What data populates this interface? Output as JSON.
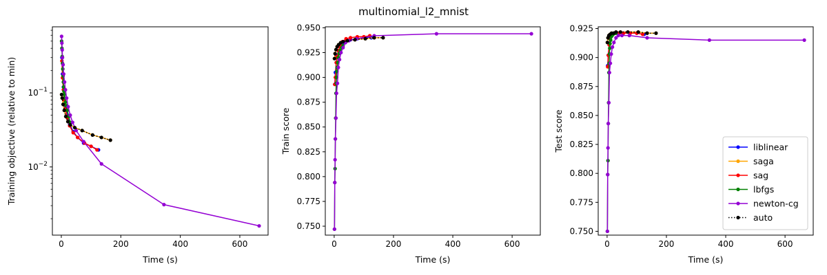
{
  "figure": {
    "title": "multinomial_l2_mnist"
  },
  "chart_data": [
    {
      "type": "line",
      "xlabel": "Time (s)",
      "ylabel": "Training objective (relative to min)",
      "xlim": [
        -30,
        695
      ],
      "ylim": [
        0.0012,
        0.78
      ],
      "yscale": "log",
      "xticks": [
        0,
        200,
        400,
        600
      ],
      "yticks": [
        {
          "value": 0.1,
          "base": "10",
          "exp": "−1"
        },
        {
          "value": 0.01,
          "base": "10",
          "exp": "−2"
        }
      ],
      "grid": false,
      "series": [
        {
          "name": "liblinear",
          "color": "#0000ff",
          "style": "solid",
          "x": [
            2,
            4,
            7,
            10,
            14,
            20,
            28,
            40,
            55,
            75,
            100,
            125
          ],
          "y": [
            0.3,
            0.18,
            0.12,
            0.085,
            0.065,
            0.05,
            0.038,
            0.03,
            0.025,
            0.021,
            0.019,
            0.017
          ]
        },
        {
          "name": "saga",
          "color": "#ffa500",
          "style": "solid",
          "x": [
            1,
            3,
            6,
            10,
            15,
            22,
            30,
            45,
            70,
            105,
            135,
            165
          ],
          "y": [
            0.095,
            0.085,
            0.07,
            0.058,
            0.048,
            0.041,
            0.037,
            0.034,
            0.031,
            0.027,
            0.025,
            0.023
          ]
        },
        {
          "name": "sag",
          "color": "#ff0000",
          "style": "solid",
          "x": [
            2,
            4,
            7,
            10,
            14,
            20,
            28,
            40,
            55,
            78,
            100,
            120
          ],
          "y": [
            0.27,
            0.16,
            0.11,
            0.08,
            0.06,
            0.046,
            0.036,
            0.029,
            0.025,
            0.021,
            0.019,
            0.017
          ]
        },
        {
          "name": "lbfgs",
          "color": "#008000",
          "style": "solid",
          "x": [
            1,
            2,
            3,
            4,
            5,
            6,
            7,
            8,
            9,
            10,
            12,
            14,
            17,
            20,
            25,
            30
          ],
          "y": [
            0.5,
            0.4,
            0.31,
            0.25,
            0.21,
            0.17,
            0.14,
            0.12,
            0.105,
            0.095,
            0.085,
            0.075,
            0.067,
            0.058,
            0.048,
            0.04
          ]
        },
        {
          "name": "newton-cg",
          "color": "#9400d3",
          "style": "solid",
          "x": [
            1,
            2,
            3,
            4,
            6,
            8,
            11,
            14,
            18,
            23,
            30,
            38,
            50,
            75,
            135,
            345,
            665
          ],
          "y": [
            0.58,
            0.47,
            0.38,
            0.3,
            0.24,
            0.18,
            0.14,
            0.11,
            0.085,
            0.065,
            0.05,
            0.04,
            0.031,
            0.022,
            0.011,
            0.0031,
            0.0016
          ]
        },
        {
          "name": "auto",
          "color": "#000000",
          "style": "dotted",
          "x": [
            1,
            3,
            6,
            10,
            15,
            22,
            30,
            45,
            70,
            105,
            135,
            165
          ],
          "y": [
            0.095,
            0.085,
            0.07,
            0.058,
            0.048,
            0.041,
            0.037,
            0.034,
            0.031,
            0.027,
            0.025,
            0.023
          ]
        }
      ]
    },
    {
      "type": "line",
      "xlabel": "Time (s)",
      "ylabel": "Train score",
      "xlim": [
        -30,
        695
      ],
      "ylim": [
        0.741,
        0.951
      ],
      "yscale": "linear",
      "xticks": [
        0,
        200,
        400,
        600
      ],
      "yticks": [
        0.75,
        0.775,
        0.8,
        0.825,
        0.85,
        0.875,
        0.9,
        0.925,
        0.95
      ],
      "grid": false,
      "series": [
        {
          "name": "liblinear",
          "color": "#0000ff",
          "style": "solid",
          "x": [
            2,
            4,
            7,
            10,
            14,
            20,
            28,
            40,
            55,
            78,
            100,
            125
          ],
          "y": [
            0.893,
            0.905,
            0.915,
            0.922,
            0.927,
            0.931,
            0.934,
            0.937,
            0.938,
            0.939,
            0.94,
            0.94
          ]
        },
        {
          "name": "saga",
          "color": "#ffa500",
          "style": "solid",
          "x": [
            1,
            3,
            6,
            10,
            15,
            22,
            30,
            45,
            70,
            105,
            135,
            165
          ],
          "y": [
            0.919,
            0.924,
            0.928,
            0.931,
            0.933,
            0.935,
            0.936,
            0.937,
            0.938,
            0.939,
            0.94,
            0.94
          ]
        },
        {
          "name": "sag",
          "color": "#ff0000",
          "style": "solid",
          "x": [
            2,
            4,
            7,
            10,
            14,
            20,
            28,
            40,
            55,
            78,
            100,
            120
          ],
          "y": [
            0.893,
            0.9,
            0.915,
            0.921,
            0.927,
            0.931,
            0.936,
            0.939,
            0.94,
            0.941,
            0.941,
            0.942
          ]
        },
        {
          "name": "lbfgs",
          "color": "#008000",
          "style": "solid",
          "x": [
            1,
            2,
            3,
            4,
            5,
            6,
            7,
            8,
            9,
            10,
            12,
            14,
            17,
            20,
            25,
            30
          ],
          "y": [
            0.747,
            0.794,
            0.808,
            0.838,
            0.859,
            0.884,
            0.894,
            0.9,
            0.906,
            0.91,
            0.915,
            0.92,
            0.924,
            0.927,
            0.93,
            0.932
          ]
        },
        {
          "name": "newton-cg",
          "color": "#9400d3",
          "style": "solid",
          "x": [
            1,
            2,
            3,
            4,
            6,
            8,
            11,
            14,
            18,
            23,
            30,
            38,
            50,
            75,
            135,
            345,
            665
          ],
          "y": [
            0.747,
            0.794,
            0.817,
            0.838,
            0.859,
            0.884,
            0.894,
            0.91,
            0.918,
            0.925,
            0.93,
            0.935,
            0.937,
            0.939,
            0.942,
            0.944,
            0.944
          ]
        },
        {
          "name": "auto",
          "color": "#000000",
          "style": "dotted",
          "x": [
            1,
            3,
            6,
            10,
            15,
            22,
            30,
            45,
            70,
            105,
            135,
            165
          ],
          "y": [
            0.919,
            0.924,
            0.928,
            0.931,
            0.933,
            0.935,
            0.936,
            0.937,
            0.938,
            0.939,
            0.94,
            0.94
          ]
        }
      ]
    },
    {
      "type": "line",
      "xlabel": "Time (s)",
      "ylabel": "Test score",
      "xlim": [
        -30,
        695
      ],
      "ylim": [
        0.7467,
        0.9265
      ],
      "yscale": "linear",
      "xticks": [
        0,
        200,
        400,
        600
      ],
      "yticks": [
        0.75,
        0.775,
        0.8,
        0.825,
        0.85,
        0.875,
        0.9,
        0.925
      ],
      "grid": false,
      "legend": "lower right",
      "series": [
        {
          "name": "liblinear",
          "color": "#0000ff",
          "style": "solid",
          "x": [
            2,
            4,
            7,
            10,
            14,
            20,
            28,
            40,
            55,
            78,
            100,
            125
          ],
          "y": [
            0.893,
            0.902,
            0.911,
            0.916,
            0.918,
            0.92,
            0.921,
            0.921,
            0.921,
            0.921,
            0.921,
            0.92
          ]
        },
        {
          "name": "saga",
          "color": "#ffa500",
          "style": "solid",
          "x": [
            1,
            3,
            6,
            10,
            15,
            22,
            30,
            45,
            70,
            105,
            135,
            165
          ],
          "y": [
            0.913,
            0.917,
            0.919,
            0.92,
            0.921,
            0.921,
            0.922,
            0.922,
            0.922,
            0.922,
            0.921,
            0.921
          ]
        },
        {
          "name": "sag",
          "color": "#ff0000",
          "style": "solid",
          "x": [
            2,
            4,
            7,
            10,
            14,
            20,
            28,
            40,
            55,
            78,
            100,
            120
          ],
          "y": [
            0.892,
            0.902,
            0.911,
            0.916,
            0.919,
            0.92,
            0.921,
            0.921,
            0.921,
            0.921,
            0.921,
            0.92
          ]
        },
        {
          "name": "lbfgs",
          "color": "#008000",
          "style": "solid",
          "x": [
            1,
            2,
            3,
            4,
            5,
            6,
            7,
            8,
            9,
            10,
            12,
            14,
            17,
            20,
            25,
            30
          ],
          "y": [
            0.75,
            0.799,
            0.811,
            0.843,
            0.861,
            0.887,
            0.895,
            0.903,
            0.908,
            0.912,
            0.915,
            0.918,
            0.919,
            0.92,
            0.921,
            0.921
          ]
        },
        {
          "name": "newton-cg",
          "color": "#9400d3",
          "style": "solid",
          "x": [
            1,
            2,
            3,
            4,
            6,
            8,
            11,
            14,
            18,
            23,
            30,
            38,
            50,
            75,
            135,
            345,
            665
          ],
          "y": [
            0.75,
            0.799,
            0.822,
            0.843,
            0.861,
            0.887,
            0.895,
            0.903,
            0.909,
            0.913,
            0.917,
            0.919,
            0.919,
            0.919,
            0.917,
            0.915,
            0.915
          ]
        },
        {
          "name": "auto",
          "color": "#000000",
          "style": "dotted",
          "x": [
            1,
            3,
            6,
            10,
            15,
            22,
            30,
            45,
            70,
            105,
            135,
            165
          ],
          "y": [
            0.913,
            0.917,
            0.919,
            0.92,
            0.921,
            0.921,
            0.922,
            0.922,
            0.922,
            0.922,
            0.921,
            0.921
          ]
        }
      ]
    }
  ]
}
